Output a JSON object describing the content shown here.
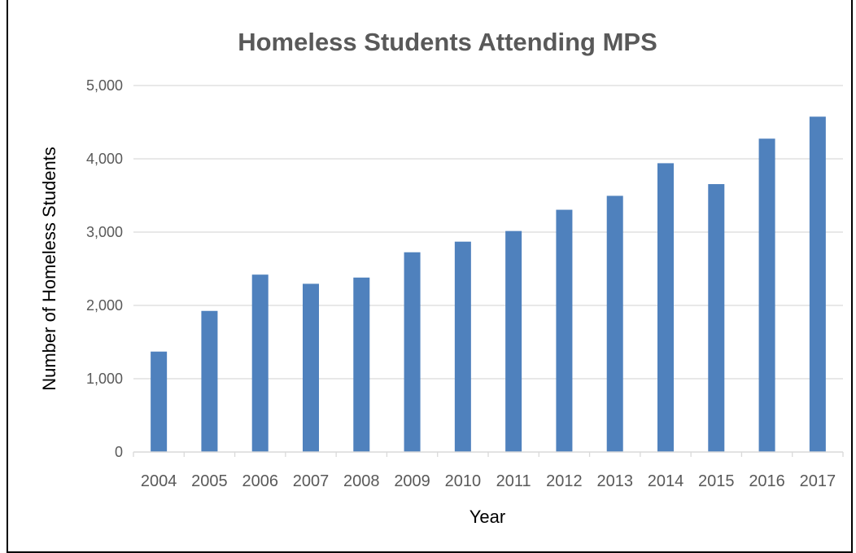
{
  "chart_data": {
    "type": "bar",
    "title": "Homeless Students Attending MPS",
    "xlabel": "Year",
    "ylabel": "Number of Homeless Students",
    "categories": [
      "2004",
      "2005",
      "2006",
      "2007",
      "2008",
      "2009",
      "2010",
      "2011",
      "2012",
      "2013",
      "2014",
      "2015",
      "2016",
      "2017"
    ],
    "values": [
      1370,
      1925,
      2420,
      2295,
      2380,
      2725,
      2870,
      3015,
      3305,
      3495,
      3940,
      3655,
      4275,
      4575
    ],
    "ylim": [
      0,
      5000
    ],
    "yticks": [
      0,
      1000,
      2000,
      3000,
      4000,
      5000
    ],
    "ytick_labels": [
      "0",
      "1,000",
      "2,000",
      "3,000",
      "4,000",
      "5,000"
    ],
    "grid": true,
    "legend": "none",
    "bar_color": "#4F81BD",
    "grid_color": "#D9D9D9"
  }
}
